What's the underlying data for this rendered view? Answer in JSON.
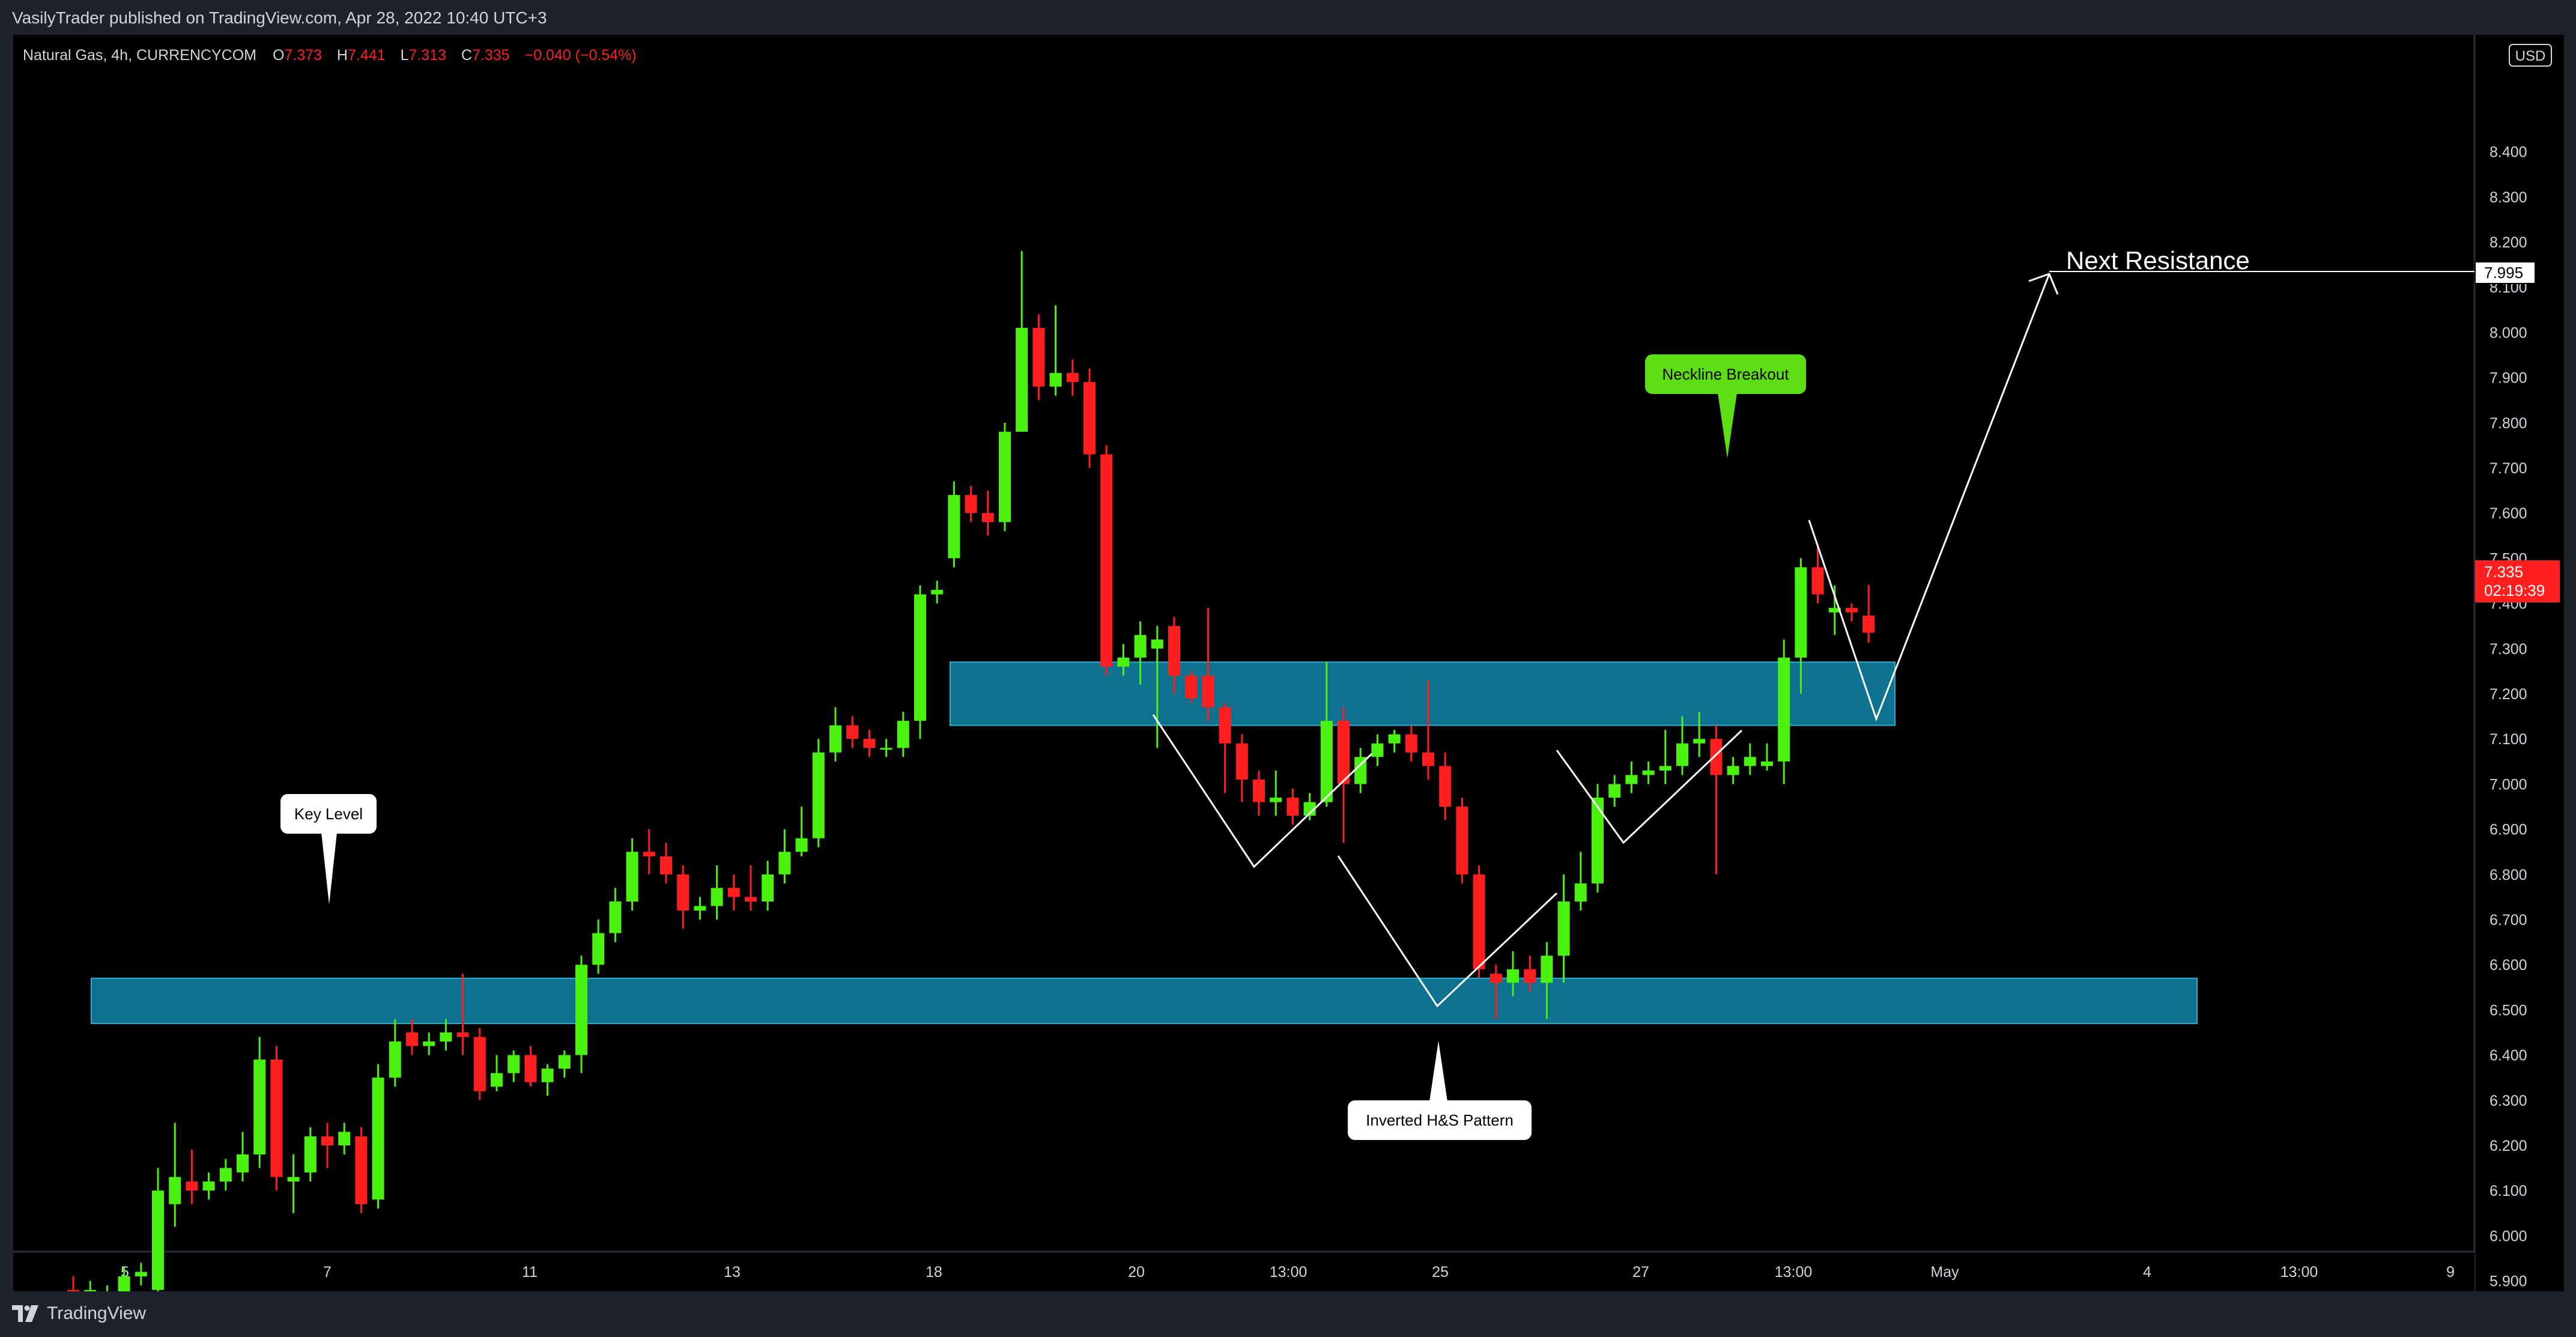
{
  "header": {
    "publish_line": "VasilyTrader published on TradingView.com, Apr 28, 2022 10:40 UTC+3"
  },
  "legend": {
    "symbol": "Natural Gas, 4h, CURRENCYCOM",
    "o_label": "O",
    "o_value": "7.373",
    "h_label": "H",
    "h_value": "7.441",
    "l_label": "L",
    "l_value": "7.313",
    "c_label": "C",
    "c_value": "7.335",
    "change": "−0.040 (−0.54%)"
  },
  "footer": {
    "brand": "TradingView"
  },
  "colors": {
    "background": "#000000",
    "frame": "#1e222d",
    "up": "#4cf20f",
    "down": "#ff1f1f",
    "zone_fill": "#0e7897",
    "zone_stroke": "#2fb7dd",
    "text": "#d1d4dc",
    "neckline_bubble": "#5ddd14",
    "price_tag": "#ff1f1f"
  },
  "chart_data": {
    "type": "candlestick",
    "currency": "USD",
    "ylim": [
      5.85,
      8.5
    ],
    "y_ticks": [
      "8.400",
      "8.300",
      "8.200",
      "8.100",
      "8.000",
      "7.900",
      "7.800",
      "7.700",
      "7.600",
      "7.500",
      "7.400",
      "7.300",
      "7.200",
      "7.100",
      "7.000",
      "6.900",
      "6.800",
      "6.700",
      "6.600",
      "6.500",
      "6.400",
      "6.300",
      "6.200",
      "6.100",
      "6.000",
      "5.900"
    ],
    "x_ticks": [
      "5",
      "7",
      "11",
      "13",
      "18",
      "20",
      "13:00",
      "25",
      "27",
      "13:00",
      "May",
      "4",
      "13:00",
      "9"
    ],
    "last_price": "7.335",
    "countdown": "02:19:39",
    "candles": [
      [
        5.88,
        5.84,
        5.91,
        5.86
      ],
      [
        5.86,
        5.88,
        5.9,
        5.82
      ],
      [
        5.84,
        5.87,
        5.89,
        5.83
      ],
      [
        5.87,
        5.91,
        5.93,
        5.86
      ],
      [
        5.91,
        5.92,
        5.94,
        5.89
      ],
      [
        5.88,
        6.1,
        6.15,
        5.86
      ],
      [
        6.07,
        6.13,
        6.25,
        6.02
      ],
      [
        6.12,
        6.1,
        6.19,
        6.07
      ],
      [
        6.1,
        6.12,
        6.14,
        6.08
      ],
      [
        6.12,
        6.15,
        6.17,
        6.1
      ],
      [
        6.14,
        6.18,
        6.23,
        6.12
      ],
      [
        6.18,
        6.39,
        6.44,
        6.15
      ],
      [
        6.39,
        6.13,
        6.42,
        6.1
      ],
      [
        6.12,
        6.13,
        6.18,
        6.05
      ],
      [
        6.14,
        6.22,
        6.24,
        6.12
      ],
      [
        6.22,
        6.2,
        6.25,
        6.15
      ],
      [
        6.2,
        6.23,
        6.25,
        6.18
      ],
      [
        6.22,
        6.07,
        6.24,
        6.05
      ],
      [
        6.08,
        6.35,
        6.38,
        6.06
      ],
      [
        6.35,
        6.43,
        6.48,
        6.33
      ],
      [
        6.45,
        6.42,
        6.48,
        6.4
      ],
      [
        6.42,
        6.43,
        6.45,
        6.4
      ],
      [
        6.43,
        6.45,
        6.48,
        6.41
      ],
      [
        6.45,
        6.44,
        6.58,
        6.4
      ],
      [
        6.44,
        6.32,
        6.46,
        6.3
      ],
      [
        6.33,
        6.36,
        6.4,
        6.32
      ],
      [
        6.36,
        6.4,
        6.41,
        6.34
      ],
      [
        6.4,
        6.34,
        6.42,
        6.33
      ],
      [
        6.34,
        6.37,
        6.38,
        6.31
      ],
      [
        6.37,
        6.4,
        6.41,
        6.35
      ],
      [
        6.4,
        6.6,
        6.62,
        6.36
      ],
      [
        6.6,
        6.67,
        6.7,
        6.58
      ],
      [
        6.67,
        6.74,
        6.77,
        6.65
      ],
      [
        6.74,
        6.85,
        6.88,
        6.72
      ],
      [
        6.85,
        6.84,
        6.9,
        6.8
      ],
      [
        6.84,
        6.8,
        6.87,
        6.78
      ],
      [
        6.8,
        6.72,
        6.82,
        6.68
      ],
      [
        6.72,
        6.73,
        6.75,
        6.7
      ],
      [
        6.73,
        6.77,
        6.82,
        6.7
      ],
      [
        6.77,
        6.75,
        6.8,
        6.72
      ],
      [
        6.75,
        6.74,
        6.82,
        6.72
      ],
      [
        6.74,
        6.8,
        6.83,
        6.72
      ],
      [
        6.8,
        6.85,
        6.9,
        6.78
      ],
      [
        6.85,
        6.88,
        6.95,
        6.84
      ],
      [
        6.88,
        7.07,
        7.1,
        6.86
      ],
      [
        7.07,
        7.13,
        7.17,
        7.05
      ],
      [
        7.13,
        7.1,
        7.15,
        7.08
      ],
      [
        7.1,
        7.08,
        7.12,
        7.06
      ],
      [
        7.08,
        7.08,
        7.1,
        7.06
      ],
      [
        7.08,
        7.14,
        7.16,
        7.06
      ],
      [
        7.14,
        7.42,
        7.44,
        7.1
      ],
      [
        7.42,
        7.43,
        7.45,
        7.4
      ],
      [
        7.5,
        7.64,
        7.67,
        7.48
      ],
      [
        7.64,
        7.6,
        7.66,
        7.58
      ],
      [
        7.6,
        7.58,
        7.65,
        7.55
      ],
      [
        7.58,
        7.78,
        7.8,
        7.56
      ],
      [
        7.78,
        8.01,
        8.18,
        7.79
      ],
      [
        8.01,
        7.88,
        8.04,
        7.85
      ],
      [
        7.88,
        7.91,
        8.06,
        7.86
      ],
      [
        7.91,
        7.89,
        7.94,
        7.86
      ],
      [
        7.89,
        7.73,
        7.92,
        7.7
      ],
      [
        7.73,
        7.26,
        7.75,
        7.24
      ],
      [
        7.26,
        7.28,
        7.31,
        7.24
      ],
      [
        7.28,
        7.33,
        7.36,
        7.22
      ],
      [
        7.3,
        7.32,
        7.35,
        7.08
      ],
      [
        7.35,
        7.24,
        7.37,
        7.2
      ],
      [
        7.24,
        7.19,
        7.25,
        7.18
      ],
      [
        7.24,
        7.17,
        7.39,
        7.14
      ],
      [
        7.17,
        7.09,
        7.18,
        6.98
      ],
      [
        7.09,
        7.01,
        7.11,
        6.96
      ],
      [
        7.01,
        6.96,
        7.03,
        6.93
      ],
      [
        6.96,
        6.97,
        7.03,
        6.93
      ],
      [
        6.97,
        6.93,
        6.99,
        6.91
      ],
      [
        6.93,
        6.96,
        6.98,
        6.92
      ],
      [
        6.96,
        7.14,
        7.27,
        6.95
      ],
      [
        7.14,
        7.0,
        7.17,
        6.87
      ],
      [
        7.0,
        7.06,
        7.08,
        6.98
      ],
      [
        7.06,
        7.09,
        7.11,
        7.04
      ],
      [
        7.09,
        7.11,
        7.12,
        7.07
      ],
      [
        7.11,
        7.07,
        7.13,
        7.05
      ],
      [
        7.07,
        7.04,
        7.23,
        7.01
      ],
      [
        7.04,
        6.95,
        7.07,
        6.92
      ],
      [
        6.95,
        6.8,
        6.97,
        6.78
      ],
      [
        6.8,
        6.59,
        6.82,
        6.57
      ],
      [
        6.58,
        6.56,
        6.6,
        6.48
      ],
      [
        6.56,
        6.59,
        6.63,
        6.53
      ],
      [
        6.59,
        6.56,
        6.62,
        6.54
      ],
      [
        6.56,
        6.62,
        6.65,
        6.48
      ],
      [
        6.62,
        6.74,
        6.8,
        6.56
      ],
      [
        6.74,
        6.78,
        6.85,
        6.72
      ],
      [
        6.78,
        6.97,
        7.0,
        6.76
      ],
      [
        6.97,
        7.0,
        7.02,
        6.95
      ],
      [
        7.0,
        7.02,
        7.05,
        6.98
      ],
      [
        7.02,
        7.03,
        7.05,
        7.0
      ],
      [
        7.03,
        7.04,
        7.12,
        7.0
      ],
      [
        7.04,
        7.09,
        7.15,
        7.02
      ],
      [
        7.09,
        7.1,
        7.16,
        7.06
      ],
      [
        7.1,
        7.02,
        7.13,
        6.8
      ],
      [
        7.02,
        7.04,
        7.06,
        7.0
      ],
      [
        7.04,
        7.06,
        7.09,
        7.02
      ],
      [
        7.04,
        7.05,
        7.09,
        7.03
      ],
      [
        7.05,
        7.28,
        7.32,
        7.0
      ],
      [
        7.28,
        7.48,
        7.5,
        7.2
      ],
      [
        7.48,
        7.42,
        7.53,
        7.4
      ],
      [
        7.38,
        7.39,
        7.44,
        7.33
      ],
      [
        7.39,
        7.38,
        7.4,
        7.36
      ],
      [
        7.373,
        7.335,
        7.441,
        7.313
      ]
    ],
    "zones": [
      {
        "from": 6.47,
        "to": 6.57
      },
      {
        "from": 7.13,
        "to": 7.27
      }
    ],
    "annotations": {
      "key_level": "Key Level",
      "inverted_hs": "Inverted H&S Pattern",
      "neckline_breakout": "Neckline Breakout",
      "next_resistance": "Next Resistance",
      "resistance_price": "7.995"
    }
  }
}
